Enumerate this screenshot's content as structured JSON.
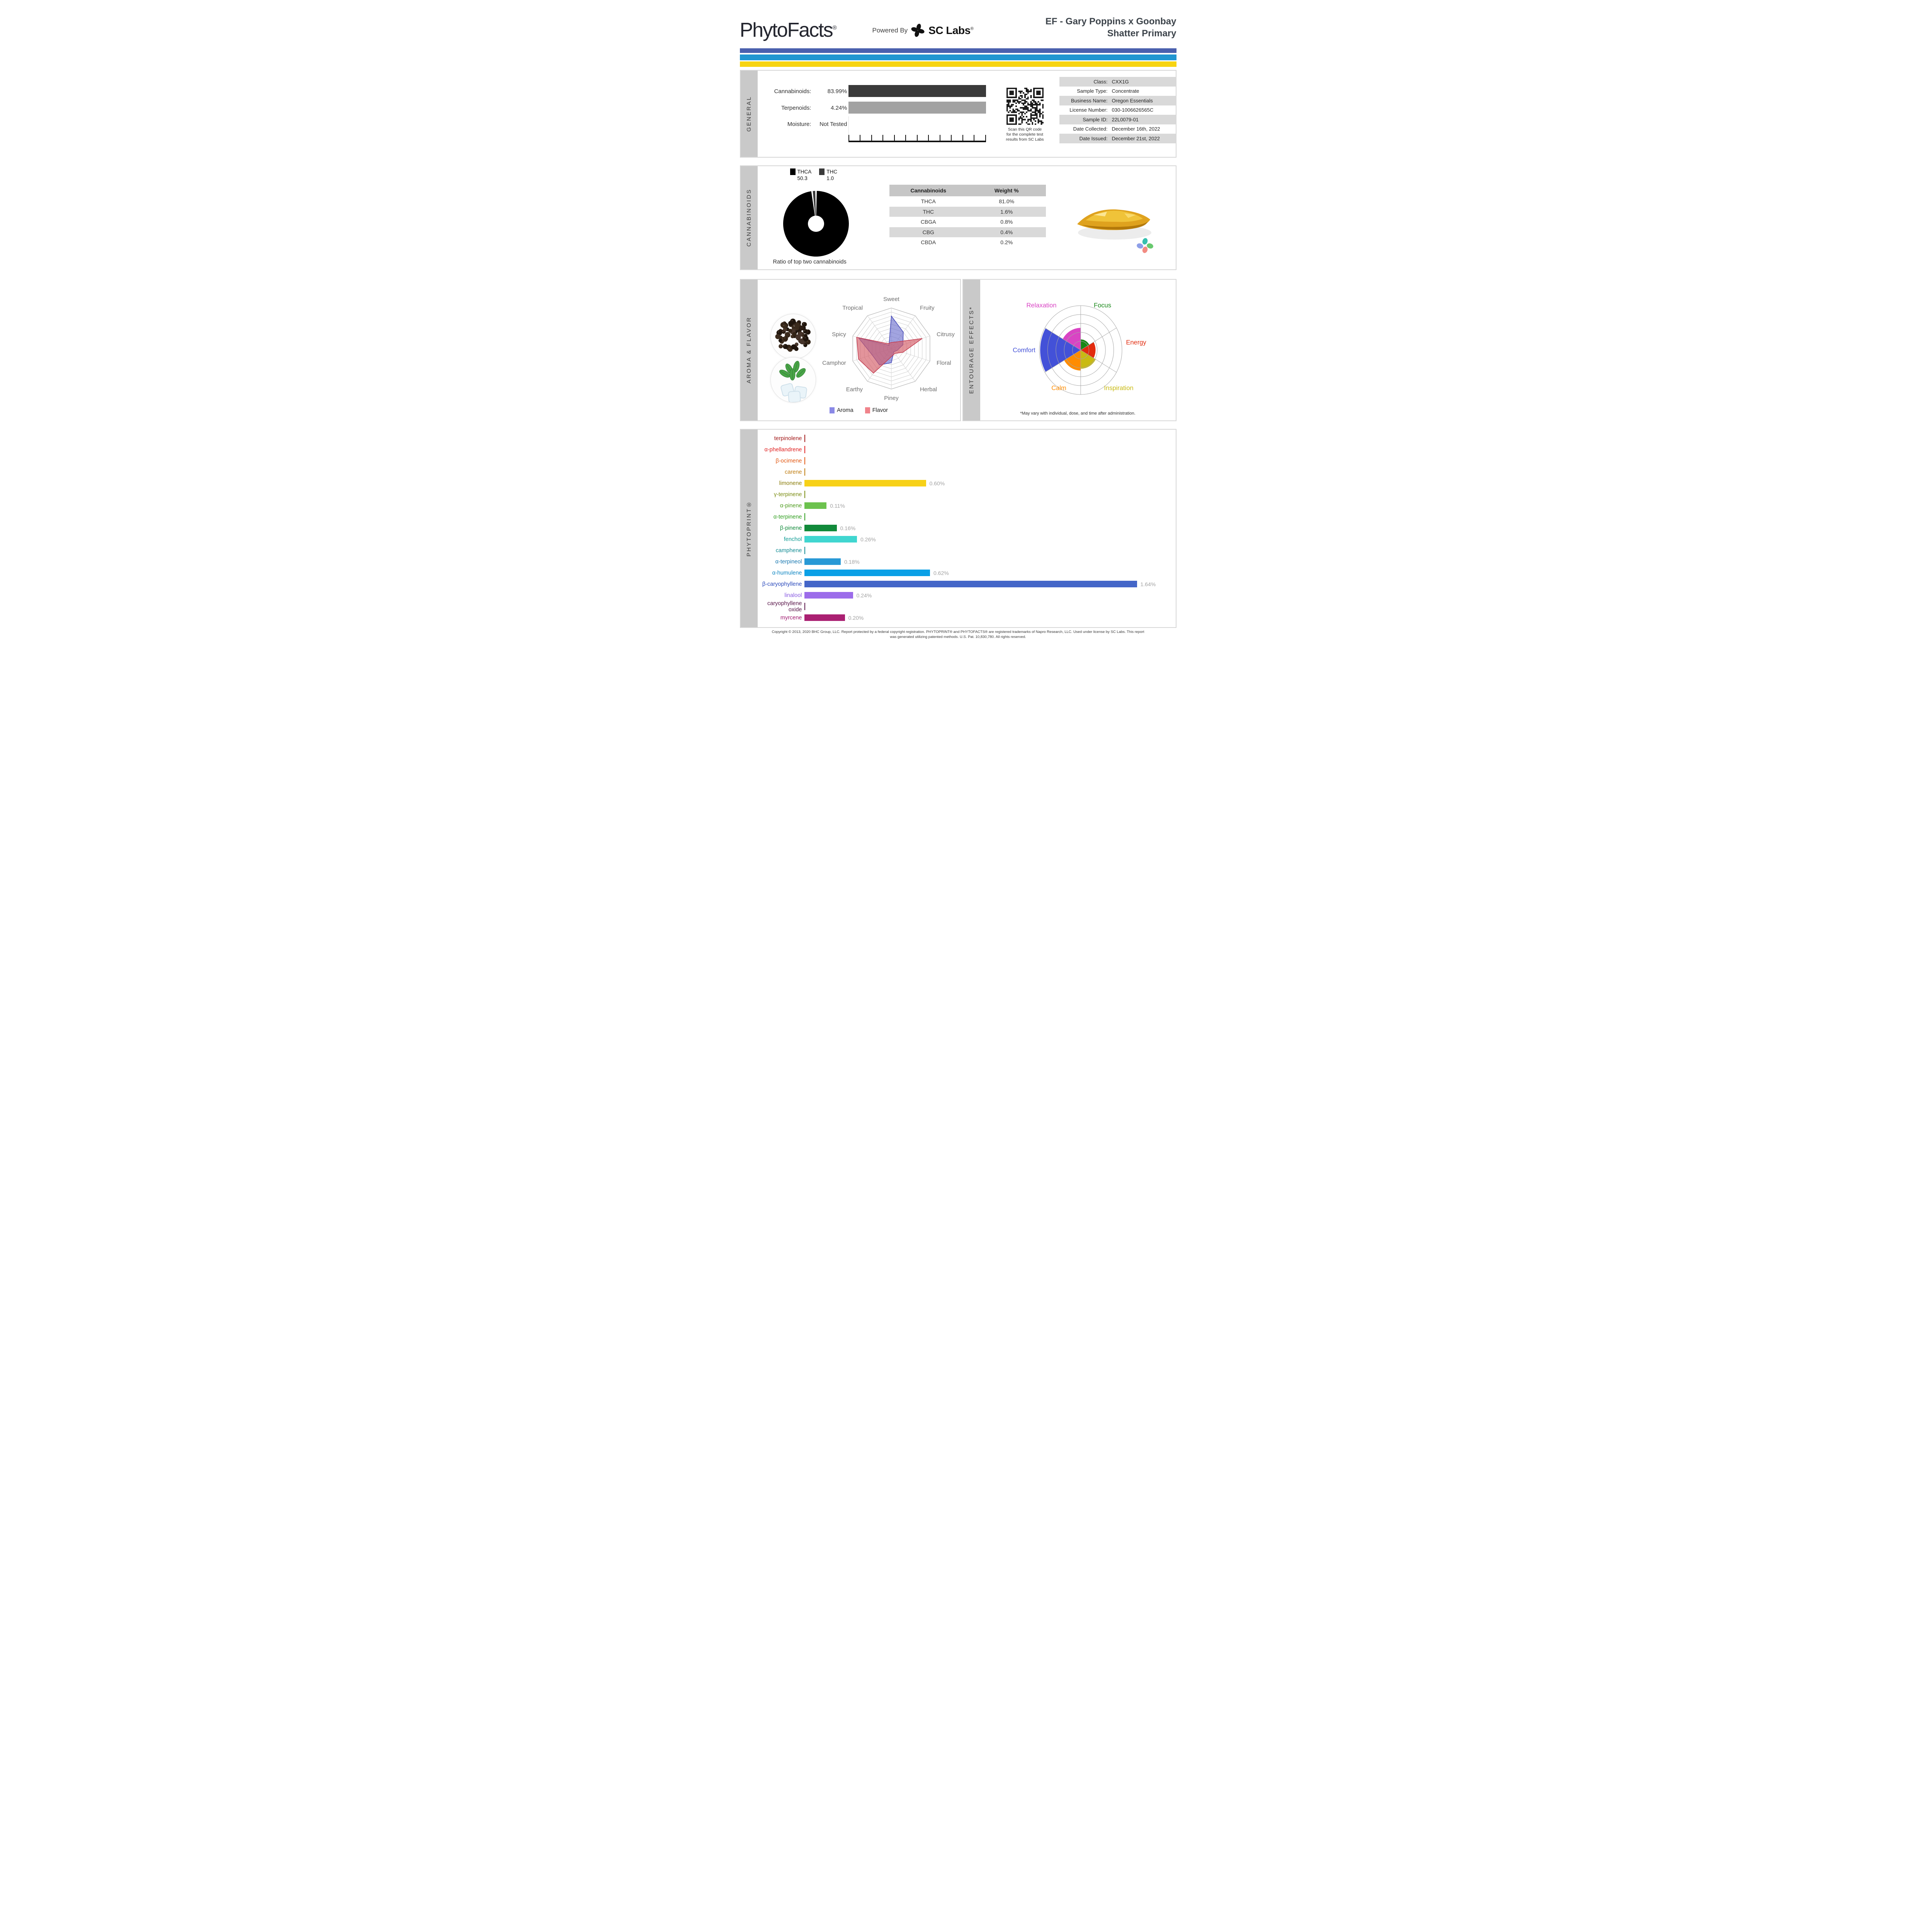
{
  "header": {
    "brand": "PhytoFacts",
    "brand_reg": "®",
    "powered_by": "Powered By",
    "lab_name": "SC Labs",
    "lab_reg": "®",
    "title_line1": "EF - Gary Poppins x Goonbay",
    "title_line2": "Shatter Primary"
  },
  "stripes": [
    "#4a60ae",
    "#2196d1",
    "#f7d411"
  ],
  "general": {
    "section_label": "GENERAL",
    "metrics": [
      {
        "label": "Cannabinoids:",
        "value": "83.99%",
        "bar_color": "#3a3a3a",
        "has_bar": true
      },
      {
        "label": "Terpenoids:",
        "value": "4.24%",
        "bar_color": "#a2a2a2",
        "has_bar": true
      },
      {
        "label": "Moisture:",
        "value": "Not Tested",
        "has_bar": false
      }
    ],
    "qr_caption": [
      "Scan this QR code",
      "for the complete test",
      "results from SC Labs"
    ],
    "info": [
      {
        "label": "Class:",
        "value": "CXX1G"
      },
      {
        "label": "Sample Type:",
        "value": "Concentrate"
      },
      {
        "label": "Business Name:",
        "value": "Oregon Essentials"
      },
      {
        "label": "License Number:",
        "value": "030-1006626565C"
      },
      {
        "label": "Sample ID:",
        "value": "22L0079-01"
      },
      {
        "label": "Date Collected:",
        "value": "December 16th, 2022"
      },
      {
        "label": "Date Issued:",
        "value": "December 21st, 2022"
      }
    ]
  },
  "cannabinoids": {
    "section_label": "CANNABINOIDS",
    "caption": "Ratio of top two cannabinoids",
    "table": {
      "headers": [
        "Cannabinoids",
        "Weight %"
      ],
      "rows": [
        [
          "THCA",
          "81.0%"
        ],
        [
          "THC",
          "1.6%"
        ],
        [
          "CBGA",
          "0.8%"
        ],
        [
          "CBG",
          "0.4%"
        ],
        [
          "CBDA",
          "0.2%"
        ]
      ]
    }
  },
  "aroma_flavor": {
    "section_label": "AROMA & FLAVOR",
    "legend": [
      {
        "name": "Aroma",
        "color": "#8a89e6"
      },
      {
        "name": "Flavor",
        "color": "#f0838b"
      }
    ]
  },
  "entourage": {
    "section_label": "ENTOURAGE EFFECTS*",
    "footnote": "*May vary with individual, dose, and time after administration."
  },
  "phytoprint": {
    "section_label": "PHYTOPRINT®"
  },
  "footer": {
    "line1": "Copyright © 2013, 2020 BHC Group, LLC. Report protected by a federal copyright registration. PHYTOPRINT® and PHYTOFACTS® are registered trademarks of Napro Research, LLC. Used under license by SC Labs. This report",
    "line2": "was generated utilizing patented methods. U.S. Pat. 10,830,780. All rights reserved."
  },
  "chart_data": [
    {
      "id": "cannabinoid-ratio-donut",
      "type": "pie",
      "title": "Ratio of top two cannabinoids",
      "labels": [
        "THCA",
        "THC"
      ],
      "values": [
        50.3,
        1.0
      ],
      "legend_values": [
        "50.3",
        "1.0"
      ],
      "colors": [
        "#000000",
        "#3a3a3a"
      ]
    },
    {
      "id": "aroma-flavor-radar",
      "type": "radar",
      "categories": [
        "Sweet",
        "Fruity",
        "Citrusy",
        "Floral",
        "Herbal",
        "Piney",
        "Earthy",
        "Camphor",
        "Spicy",
        "Tropical"
      ],
      "rmax": 10,
      "rings": 10,
      "series": [
        {
          "name": "Aroma",
          "values": [
            8,
            5,
            3,
            1.5,
            1,
            3.5,
            5,
            5,
            8.5,
            1
          ],
          "fill": "#6468cc",
          "fill_opacity": 0.6,
          "stroke": "#4448b8"
        },
        {
          "name": "Flavor",
          "values": [
            1.5,
            2,
            8,
            3,
            1.5,
            2,
            7.5,
            8.5,
            9,
            1.5
          ],
          "fill": "#d45a66",
          "fill_opacity": 0.65,
          "stroke": "#c23a4e"
        }
      ]
    },
    {
      "id": "entourage-effects-polar",
      "type": "polar",
      "categories": [
        "Focus",
        "Energy",
        "Inspiration",
        "Calm",
        "Comfort",
        "Relaxation"
      ],
      "values": [
        1.2,
        1.8,
        2.1,
        2.3,
        4.9,
        2.5
      ],
      "colors": [
        "#168716",
        "#e22b0e",
        "#c9ba12",
        "#ff8c00",
        "#4351d8",
        "#d944c4"
      ],
      "rmax": 5,
      "rings": 5
    },
    {
      "id": "phytoprint-terpene-bars",
      "type": "bar",
      "unit": "%",
      "xmax": 1.64,
      "rows": [
        {
          "name": "terpinolene",
          "value": 0,
          "display": "",
          "label_color": "#a11616",
          "bar_color": "#a11616"
        },
        {
          "name": "α-phellandrene",
          "value": 0,
          "display": "",
          "label_color": "#e02020",
          "bar_color": "#e02020"
        },
        {
          "name": "β-ocimene",
          "value": 0,
          "display": "",
          "label_color": "#e25812",
          "bar_color": "#e25812"
        },
        {
          "name": "carene",
          "value": 0,
          "display": "",
          "label_color": "#bf7c0e",
          "bar_color": "#bf7c0e"
        },
        {
          "name": "limonene",
          "value": 0.6,
          "display": "0.60%",
          "label_color": "#8a7d0a",
          "bar_color": "#f7d118"
        },
        {
          "name": "γ-terpinene",
          "value": 0,
          "display": "",
          "label_color": "#7a8c12",
          "bar_color": "#7a8c12"
        },
        {
          "name": "α-pinene",
          "value": 0.11,
          "display": "0.11%",
          "label_color": "#4e9c1e",
          "bar_color": "#6cc24e"
        },
        {
          "name": "α-terpinene",
          "value": 0,
          "display": "",
          "label_color": "#2f9e1e",
          "bar_color": "#2f9e1e"
        },
        {
          "name": "β-pinene",
          "value": 0.16,
          "display": "0.16%",
          "label_color": "#118a3a",
          "bar_color": "#118a3a"
        },
        {
          "name": "fenchol",
          "value": 0.26,
          "display": "0.26%",
          "label_color": "#0f9c94",
          "bar_color": "#40d6d0"
        },
        {
          "name": "camphene",
          "value": 0,
          "display": "",
          "label_color": "#128c94",
          "bar_color": "#128c94"
        },
        {
          "name": "α-terpineol",
          "value": 0.18,
          "display": "0.18%",
          "label_color": "#1878b0",
          "bar_color": "#2899d6"
        },
        {
          "name": "α-humulene",
          "value": 0.62,
          "display": "0.62%",
          "label_color": "#0e86c2",
          "bar_color": "#0aa0e6"
        },
        {
          "name": "β-caryophyllene",
          "value": 1.64,
          "display": "1.64%",
          "label_color": "#2b4abc",
          "bar_color": "#4466c8"
        },
        {
          "name": "linalool",
          "value": 0.24,
          "display": "0.24%",
          "label_color": "#8a5ce2",
          "bar_color": "#9c6cea"
        },
        {
          "name": "caryophyllene oxide",
          "value": 0,
          "display": "",
          "label_color": "#581448",
          "bar_color": "#581448"
        },
        {
          "name": "myrcene",
          "value": 0.2,
          "display": "0.20%",
          "label_color": "#a01a70",
          "bar_color": "#aa2072"
        }
      ]
    }
  ]
}
